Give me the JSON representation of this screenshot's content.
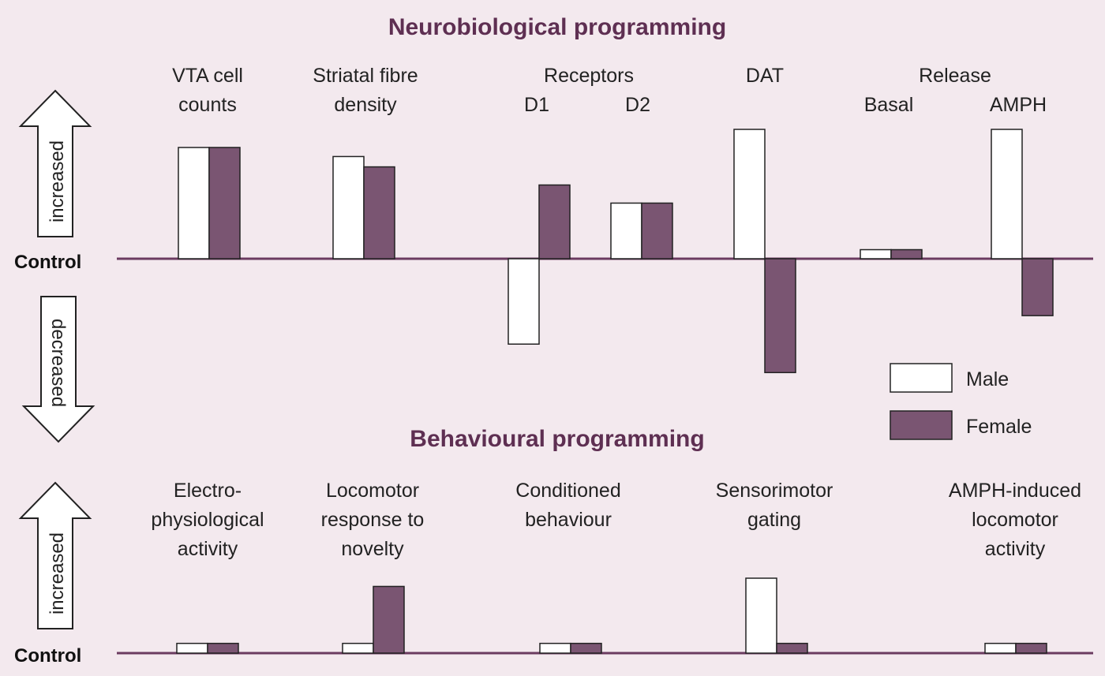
{
  "colors": {
    "background": "#f3e9ee",
    "male": "#ffffff",
    "female": "#7a5572",
    "axis": "#6b3b60",
    "title": "#5e2f52"
  },
  "legend": {
    "male_label": "Male",
    "female_label": "Female"
  },
  "arrows": {
    "increased": "increased",
    "decreased": "decreased"
  },
  "chart_data": [
    {
      "type": "bar",
      "title": "Neurobiological programming",
      "baseline_label": "Control",
      "ylim": [
        -1.0,
        1.0
      ],
      "group_labels": [
        {
          "text": [
            "VTA cell",
            "counts"
          ]
        },
        {
          "text": [
            "Striatal fibre",
            "density"
          ]
        },
        {
          "text": [
            "Receptors"
          ]
        },
        {
          "text": [
            "DAT"
          ]
        },
        {
          "text": [
            "Release"
          ]
        }
      ],
      "categories": [
        "VTA cell counts",
        "Striatal fibre density",
        "D1",
        "D2",
        "DAT",
        "Basal",
        "AMPH"
      ],
      "sub_labels": [
        "",
        "",
        "D1",
        "D2",
        "",
        "Basal",
        "AMPH"
      ],
      "series": [
        {
          "name": "Male",
          "values": [
            0.86,
            0.79,
            -0.66,
            0.43,
            1.0,
            0.07,
            1.0
          ]
        },
        {
          "name": "Female",
          "values": [
            0.86,
            0.71,
            0.57,
            0.43,
            -0.88,
            0.07,
            -0.44
          ]
        }
      ]
    },
    {
      "type": "bar",
      "title": "Behavioural programming",
      "baseline_label": "Control",
      "ylim": [
        0,
        1.0
      ],
      "categories": [
        "Electro-physiological activity",
        "Locomotor response to novelty",
        "Conditioned behaviour",
        "Sensorimotor gating",
        "AMPH-induced locomotor activity"
      ],
      "group_labels": [
        {
          "text": [
            "Electro-",
            "physiological",
            "activity"
          ]
        },
        {
          "text": [
            "Locomotor",
            "response to",
            "novelty"
          ]
        },
        {
          "text": [
            "Conditioned",
            "behaviour"
          ]
        },
        {
          "text": [
            "Sensorimotor",
            "gating"
          ]
        },
        {
          "text": [
            "AMPH-induced",
            "locomotor",
            "activity"
          ]
        }
      ],
      "series": [
        {
          "name": "Male",
          "values": [
            0.13,
            0.13,
            0.13,
            1.0,
            0.13
          ]
        },
        {
          "name": "Female",
          "values": [
            0.13,
            0.89,
            0.13,
            0.13,
            0.13
          ]
        }
      ]
    }
  ]
}
